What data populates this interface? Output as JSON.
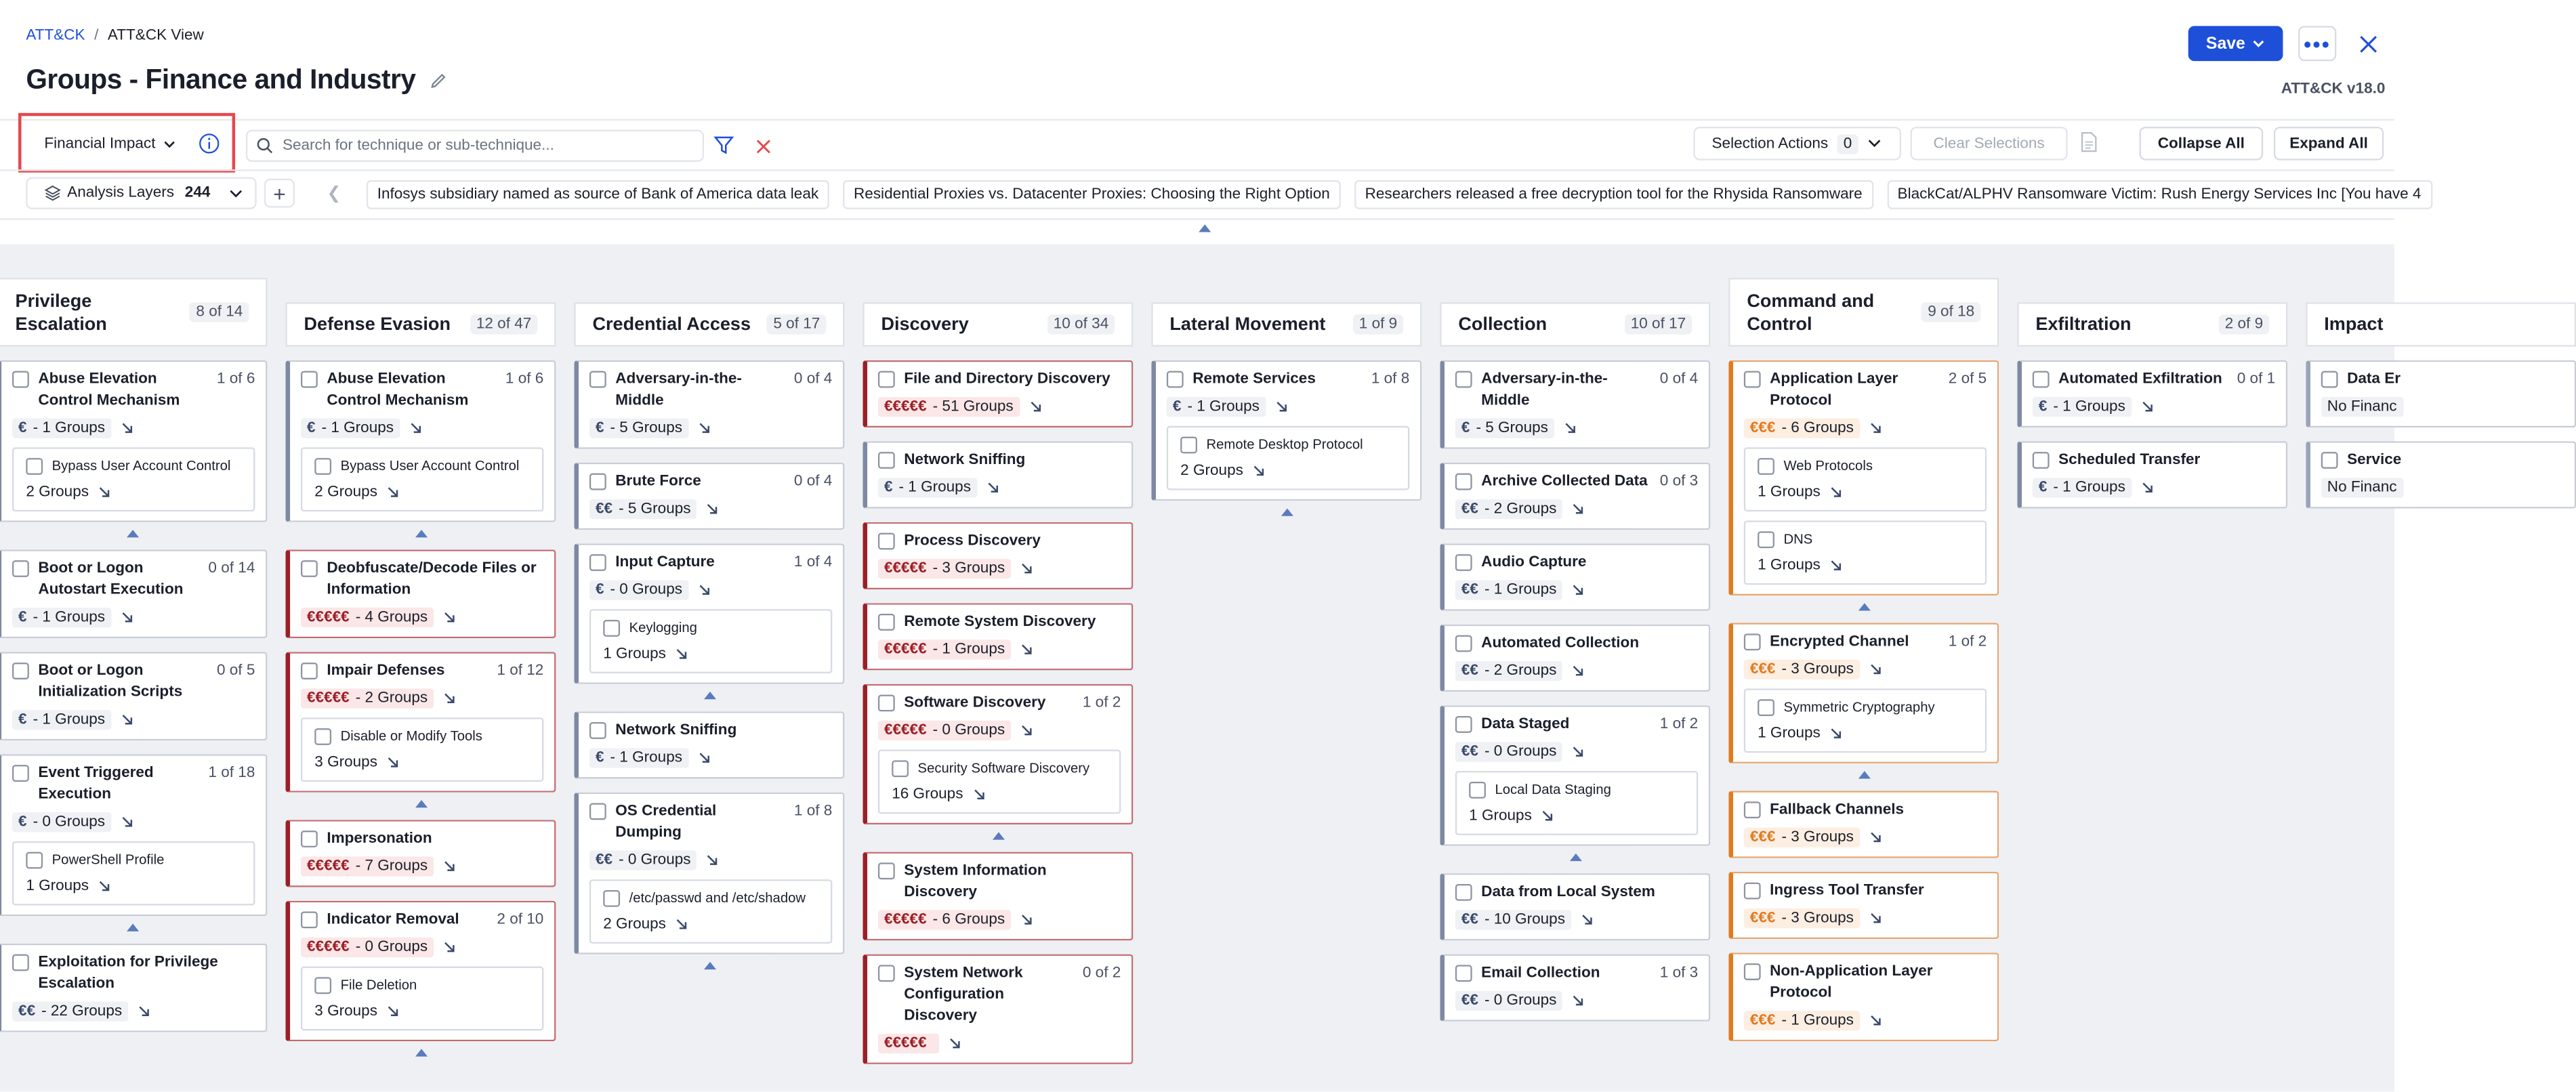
{
  "breadcrumb": {
    "root": "ATT&CK",
    "current": "ATT&CK View"
  },
  "page_title": "Groups - Finance and Industry",
  "save_label": "Save",
  "version": "ATT&CK v18.0",
  "impact_dropdown": "Financial Impact",
  "search_placeholder": "Search for technique or sub-technique...",
  "selection_actions": {
    "label": "Selection Actions",
    "count": "0"
  },
  "clear_selections": "Clear Selections",
  "collapse_all": "Collapse All",
  "expand_all": "Expand All",
  "layers": {
    "label": "Analysis Layers",
    "count": "244"
  },
  "news": [
    "Infosys subsidiary named as source of Bank of America data leak",
    "Residential Proxies vs. Datacenter Proxies: Choosing the Right Option",
    "Researchers released a free decryption tool for the Rhysida Ransomware",
    "BlackCat/ALPHV Ransomware Victim: Rush Energy Services Inc [You have 4"
  ],
  "colors": {
    "accent": "#1e4fd8",
    "severe": "#9b1f27",
    "high": "#e07b20",
    "highlight": "#e5484d"
  },
  "columns": [
    {
      "name": "Privilege Escalation",
      "count": "8 of 14",
      "techniques": [
        {
          "name": "Abuse Elevation Control Mechanism",
          "count": "1 of 6",
          "fin": "€",
          "groups": "- 1 Groups",
          "sev": 1,
          "subs": [
            {
              "name": "Bypass User Account Control",
              "groups": "2 Groups"
            }
          ]
        },
        {
          "name": "Boot or Logon Autostart Execution",
          "count": "0 of 14",
          "fin": "€",
          "groups": "- 1 Groups",
          "sev": 1,
          "subs": []
        },
        {
          "name": "Boot or Logon Initialization Scripts",
          "count": "0 of 5",
          "fin": "€",
          "groups": "- 1 Groups",
          "sev": 1,
          "subs": []
        },
        {
          "name": "Event Triggered Execution",
          "count": "1 of 18",
          "fin": "€",
          "groups": "- 0 Groups",
          "sev": 1,
          "subs": [
            {
              "name": "PowerShell Profile",
              "groups": "1 Groups"
            }
          ]
        },
        {
          "name": "Exploitation for Privilege Escalation",
          "count": "",
          "fin": "€€",
          "groups": "- 22 Groups",
          "sev": 2,
          "subs": []
        }
      ]
    },
    {
      "name": "Defense Evasion",
      "count": "12 of 47",
      "techniques": [
        {
          "name": "Abuse Elevation Control Mechanism",
          "count": "1 of 6",
          "fin": "€",
          "groups": "- 1 Groups",
          "sev": 1,
          "subs": [
            {
              "name": "Bypass User Account Control",
              "groups": "2 Groups"
            }
          ]
        },
        {
          "name": "Deobfuscate/Decode Files or Information",
          "count": "",
          "fin": "€€€€€",
          "groups": "- 4 Groups",
          "sev": 5,
          "subs": []
        },
        {
          "name": "Impair Defenses",
          "count": "1 of 12",
          "fin": "€€€€€",
          "groups": "- 2 Groups",
          "sev": 5,
          "subs": [
            {
              "name": "Disable or Modify Tools",
              "groups": "3 Groups"
            }
          ]
        },
        {
          "name": "Impersonation",
          "count": "",
          "fin": "€€€€€",
          "groups": "- 7 Groups",
          "sev": 5,
          "subs": []
        },
        {
          "name": "Indicator Removal",
          "count": "2 of 10",
          "fin": "€€€€€",
          "groups": "- 0 Groups",
          "sev": 5,
          "subs": [
            {
              "name": "File Deletion",
              "groups": "3 Groups"
            }
          ]
        }
      ]
    },
    {
      "name": "Credential Access",
      "count": "5 of 17",
      "techniques": [
        {
          "name": "Adversary-in-the-Middle",
          "count": "0 of 4",
          "fin": "€",
          "groups": "- 5 Groups",
          "sev": 1,
          "subs": []
        },
        {
          "name": "Brute Force",
          "count": "0 of 4",
          "fin": "€€",
          "groups": "- 5 Groups",
          "sev": 2,
          "subs": []
        },
        {
          "name": "Input Capture",
          "count": "1 of 4",
          "fin": "€",
          "groups": "- 0 Groups",
          "sev": 1,
          "subs": [
            {
              "name": "Keylogging",
              "groups": "1 Groups"
            }
          ]
        },
        {
          "name": "Network Sniffing",
          "count": "",
          "fin": "€",
          "groups": "- 1 Groups",
          "sev": 1,
          "subs": []
        },
        {
          "name": "OS Credential Dumping",
          "count": "1 of 8",
          "fin": "€€",
          "groups": "- 0 Groups",
          "sev": 2,
          "subs": [
            {
              "name": "/etc/passwd and /etc/shadow",
              "groups": "2 Groups"
            }
          ]
        }
      ]
    },
    {
      "name": "Discovery",
      "count": "10 of 34",
      "techniques": [
        {
          "name": "File and Directory Discovery",
          "count": "",
          "fin": "€€€€€",
          "groups": "- 51 Groups",
          "sev": 5,
          "subs": []
        },
        {
          "name": "Network Sniffing",
          "count": "",
          "fin": "€",
          "groups": "- 1 Groups",
          "sev": 1,
          "subs": []
        },
        {
          "name": "Process Discovery",
          "count": "",
          "fin": "€€€€€",
          "groups": "- 3 Groups",
          "sev": 5,
          "subs": []
        },
        {
          "name": "Remote System Discovery",
          "count": "",
          "fin": "€€€€€",
          "groups": "- 1 Groups",
          "sev": 5,
          "subs": []
        },
        {
          "name": "Software Discovery",
          "count": "1 of 2",
          "fin": "€€€€€",
          "groups": "- 0 Groups",
          "sev": 5,
          "subs": [
            {
              "name": "Security Software Discovery",
              "groups": "16 Groups"
            }
          ]
        },
        {
          "name": "System Information Discovery",
          "count": "",
          "fin": "€€€€€",
          "groups": "- 6 Groups",
          "sev": 5,
          "subs": []
        },
        {
          "name": "System Network Configuration Discovery",
          "count": "0 of 2",
          "fin": "€€€€€",
          "groups": "",
          "sev": 5,
          "subs": []
        }
      ]
    },
    {
      "name": "Lateral Movement",
      "count": "1 of 9",
      "techniques": [
        {
          "name": "Remote Services",
          "count": "1 of 8",
          "fin": "€",
          "groups": "- 1 Groups",
          "sev": 1,
          "subs": [
            {
              "name": "Remote Desktop Protocol",
              "groups": "2 Groups"
            }
          ]
        }
      ]
    },
    {
      "name": "Collection",
      "count": "10 of 17",
      "techniques": [
        {
          "name": "Adversary-in-the-Middle",
          "count": "0 of 4",
          "fin": "€",
          "groups": "- 5 Groups",
          "sev": 1,
          "subs": []
        },
        {
          "name": "Archive Collected Data",
          "count": "0 of 3",
          "fin": "€€",
          "groups": "- 2 Groups",
          "sev": 2,
          "subs": []
        },
        {
          "name": "Audio Capture",
          "count": "",
          "fin": "€€",
          "groups": "- 1 Groups",
          "sev": 2,
          "subs": []
        },
        {
          "name": "Automated Collection",
          "count": "",
          "fin": "€€",
          "groups": "- 2 Groups",
          "sev": 2,
          "subs": []
        },
        {
          "name": "Data Staged",
          "count": "1 of 2",
          "fin": "€€",
          "groups": "- 0 Groups",
          "sev": 2,
          "subs": [
            {
              "name": "Local Data Staging",
              "groups": "1 Groups"
            }
          ]
        },
        {
          "name": "Data from Local System",
          "count": "",
          "fin": "€€",
          "groups": "- 10 Groups",
          "sev": 2,
          "subs": []
        },
        {
          "name": "Email Collection",
          "count": "1 of 3",
          "fin": "€€",
          "groups": "- 0 Groups",
          "sev": 2,
          "subs": []
        }
      ]
    },
    {
      "name": "Command and Control",
      "count": "9 of 18",
      "techniques": [
        {
          "name": "Application Layer Protocol",
          "count": "2 of 5",
          "fin": "€€€",
          "groups": "- 6 Groups",
          "sev": 3,
          "subs": [
            {
              "name": "Web Protocols",
              "groups": "1 Groups"
            },
            {
              "name": "DNS",
              "groups": "1 Groups"
            }
          ]
        },
        {
          "name": "Encrypted Channel",
          "count": "1 of 2",
          "fin": "€€€",
          "groups": "- 3 Groups",
          "sev": 3,
          "subs": [
            {
              "name": "Symmetric Cryptography",
              "groups": "1 Groups"
            }
          ]
        },
        {
          "name": "Fallback Channels",
          "count": "",
          "fin": "€€€",
          "groups": "- 3 Groups",
          "sev": 3,
          "subs": []
        },
        {
          "name": "Ingress Tool Transfer",
          "count": "",
          "fin": "€€€",
          "groups": "- 3 Groups",
          "sev": 3,
          "subs": []
        },
        {
          "name": "Non-Application Layer Protocol",
          "count": "",
          "fin": "€€€",
          "groups": "- 1 Groups",
          "sev": 3,
          "subs": []
        }
      ]
    },
    {
      "name": "Exfiltration",
      "count": "2 of 9",
      "techniques": [
        {
          "name": "Automated Exfiltration",
          "count": "0 of 1",
          "fin": "€",
          "groups": "- 1 Groups",
          "sev": 1,
          "subs": []
        },
        {
          "name": "Scheduled Transfer",
          "count": "",
          "fin": "€",
          "groups": "- 1 Groups",
          "sev": 1,
          "subs": []
        }
      ]
    },
    {
      "name": "Impact",
      "count": "",
      "techniques": [
        {
          "name": "Data Er",
          "count": "",
          "fin": "",
          "groups": "No Financ",
          "sev": 0,
          "subs": []
        },
        {
          "name": "Service",
          "count": "",
          "fin": "",
          "groups": "No Financ",
          "sev": 0,
          "subs": []
        }
      ]
    }
  ]
}
